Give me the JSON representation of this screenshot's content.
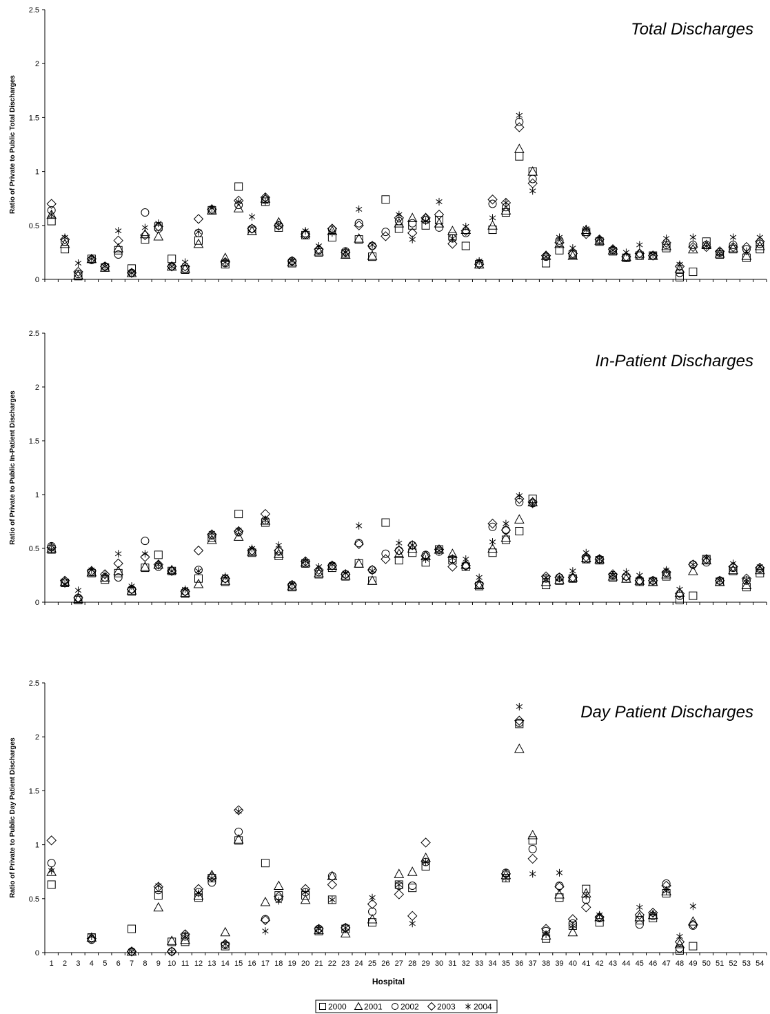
{
  "chart_data": [
    {
      "type": "scatter",
      "title": "Total Discharges",
      "ylabel": "Ratio of Private to Public Total Discharges",
      "ylim": [
        0,
        2.5
      ],
      "yticks": [
        "0",
        "0.5",
        "1",
        "1.5",
        "2",
        "2.5"
      ],
      "x": [
        1,
        2,
        3,
        4,
        5,
        6,
        7,
        8,
        9,
        10,
        11,
        12,
        13,
        14,
        15,
        16,
        17,
        18,
        19,
        20,
        21,
        22,
        23,
        24,
        25,
        26,
        27,
        28,
        29,
        30,
        31,
        32,
        33,
        34,
        35,
        36,
        37,
        38,
        39,
        40,
        41,
        42,
        43,
        44,
        45,
        46,
        47,
        48,
        49,
        50,
        51,
        52,
        53,
        54
      ],
      "series": [
        {
          "name": "2000",
          "values": [
            0.54,
            0.28,
            0.03,
            0.19,
            0.11,
            0.27,
            0.1,
            0.37,
            0.49,
            0.19,
            0.09,
            0.36,
            0.64,
            0.14,
            0.86,
            0.45,
            0.72,
            0.48,
            0.15,
            0.41,
            0.25,
            0.39,
            0.24,
            0.37,
            0.21,
            0.74,
            0.47,
            0.5,
            0.5,
            0.55,
            0.4,
            0.31,
            0.14,
            0.46,
            0.62,
            1.14,
            1.0,
            0.15,
            0.27,
            0.23,
            0.44,
            0.35,
            0.26,
            0.2,
            0.22,
            0.22,
            0.29,
            0.02,
            0.07,
            0.35,
            0.23,
            0.28,
            0.2,
            0.28
          ]
        },
        {
          "name": "2001",
          "values": [
            0.6,
            0.33,
            0.04,
            0.19,
            0.11,
            0.29,
            0.06,
            0.42,
            0.4,
            0.12,
            0.1,
            0.33,
            0.64,
            0.2,
            0.66,
            0.45,
            0.75,
            0.53,
            0.16,
            0.43,
            0.26,
            0.45,
            0.23,
            0.38,
            0.22,
            null,
            0.52,
            0.57,
            0.57,
            0.52,
            0.45,
            0.46,
            0.14,
            0.5,
            0.64,
            1.21,
            1.0,
            0.22,
            0.33,
            0.22,
            0.46,
            0.36,
            0.27,
            0.21,
            0.24,
            0.22,
            0.31,
            0.1,
            0.28,
            0.32,
            0.24,
            0.29,
            0.22,
            0.31
          ]
        },
        {
          "name": "2002",
          "values": [
            0.64,
            0.35,
            0.05,
            0.18,
            0.12,
            0.23,
            0.06,
            0.62,
            0.47,
            0.12,
            0.1,
            0.43,
            0.64,
            0.15,
            0.69,
            0.47,
            0.74,
            0.5,
            0.17,
            0.41,
            0.27,
            0.46,
            0.26,
            0.52,
            0.31,
            0.44,
            0.54,
            0.52,
            0.55,
            0.48,
            0.38,
            0.43,
            0.15,
            0.7,
            0.67,
            1.46,
            0.93,
            0.21,
            0.36,
            0.23,
            0.44,
            0.36,
            0.27,
            0.2,
            0.22,
            0.22,
            0.32,
            0.06,
            0.32,
            0.32,
            0.25,
            0.32,
            0.28,
            0.33
          ]
        },
        {
          "name": "2003",
          "values": [
            0.7,
            0.37,
            0.07,
            0.19,
            0.12,
            0.36,
            0.06,
            0.41,
            0.49,
            0.12,
            0.12,
            0.56,
            0.65,
            0.16,
            0.73,
            0.47,
            0.76,
            0.5,
            0.17,
            0.42,
            0.28,
            0.47,
            0.25,
            0.5,
            0.31,
            0.4,
            0.57,
            0.43,
            0.57,
            0.6,
            0.33,
            0.45,
            0.14,
            0.74,
            0.71,
            1.41,
            0.89,
            0.22,
            0.34,
            0.24,
            0.42,
            0.37,
            0.28,
            0.21,
            0.24,
            0.22,
            0.34,
            0.12,
            0.3,
            0.3,
            0.26,
            0.3,
            0.3,
            0.35
          ]
        },
        {
          "name": "2004",
          "values": [
            0.6,
            0.39,
            0.15,
            0.19,
            0.12,
            0.45,
            0.06,
            0.48,
            0.52,
            0.12,
            0.16,
            0.44,
            0.66,
            0.16,
            0.72,
            0.58,
            0.72,
            0.5,
            0.17,
            0.45,
            0.31,
            0.43,
            0.25,
            0.65,
            0.32,
            null,
            0.6,
            0.37,
            0.54,
            0.72,
            0.38,
            0.49,
            0.17,
            0.57,
            0.71,
            1.52,
            0.82,
            0.21,
            0.39,
            0.29,
            0.47,
            0.37,
            0.27,
            0.25,
            0.32,
            0.23,
            0.38,
            0.14,
            0.39,
            0.31,
            0.24,
            0.39,
            0.26,
            0.39
          ]
        }
      ]
    },
    {
      "type": "scatter",
      "title": "In-Patient Discharges",
      "ylabel": "Ratio of Private to Public In-Patient Discharges",
      "ylim": [
        0,
        2.5
      ],
      "yticks": [
        "0",
        "0.5",
        "1",
        "1.5",
        "2",
        "2.5"
      ],
      "x": [
        1,
        2,
        3,
        4,
        5,
        6,
        7,
        8,
        9,
        10,
        11,
        12,
        13,
        14,
        15,
        16,
        17,
        18,
        19,
        20,
        21,
        22,
        23,
        24,
        25,
        26,
        27,
        28,
        29,
        30,
        31,
        32,
        33,
        34,
        35,
        36,
        37,
        38,
        39,
        40,
        41,
        42,
        43,
        44,
        45,
        46,
        47,
        48,
        49,
        50,
        51,
        52,
        53,
        54
      ],
      "series": [
        {
          "name": "2000",
          "values": [
            0.49,
            0.18,
            0.02,
            0.27,
            0.21,
            0.27,
            0.1,
            0.32,
            0.44,
            0.29,
            0.08,
            0.22,
            0.6,
            0.19,
            0.82,
            0.46,
            0.74,
            0.43,
            0.14,
            0.36,
            0.26,
            0.32,
            0.24,
            0.36,
            0.2,
            0.74,
            0.39,
            0.46,
            0.37,
            0.49,
            0.39,
            0.33,
            0.15,
            0.46,
            0.58,
            0.66,
            0.96,
            0.16,
            0.2,
            0.22,
            0.4,
            0.39,
            0.23,
            0.22,
            0.19,
            0.19,
            0.24,
            0.02,
            0.06,
            0.4,
            0.19,
            0.29,
            0.14,
            0.27
          ]
        },
        {
          "name": "2001",
          "values": [
            0.5,
            0.19,
            0.03,
            0.28,
            0.23,
            0.29,
            0.11,
            0.33,
            0.35,
            0.3,
            0.09,
            0.17,
            0.58,
            0.2,
            0.61,
            0.47,
            0.76,
            0.45,
            0.15,
            0.37,
            0.27,
            0.34,
            0.25,
            0.36,
            0.2,
            null,
            0.45,
            0.5,
            0.43,
            0.49,
            0.45,
            0.35,
            0.16,
            0.5,
            0.6,
            0.77,
            0.93,
            0.19,
            0.21,
            0.23,
            0.41,
            0.4,
            0.24,
            0.22,
            0.2,
            0.19,
            0.26,
            0.09,
            0.29,
            0.39,
            0.19,
            0.3,
            0.16,
            0.3
          ]
        },
        {
          "name": "2002",
          "values": [
            0.52,
            0.18,
            0.04,
            0.28,
            0.23,
            0.23,
            0.12,
            0.57,
            0.33,
            0.29,
            0.1,
            0.3,
            0.62,
            0.22,
            0.65,
            0.47,
            0.76,
            0.47,
            0.16,
            0.36,
            0.28,
            0.34,
            0.26,
            0.55,
            0.3,
            0.45,
            0.48,
            0.53,
            0.44,
            0.47,
            0.4,
            0.34,
            0.16,
            0.7,
            0.67,
            0.93,
            0.92,
            0.22,
            0.23,
            0.22,
            0.4,
            0.4,
            0.25,
            0.24,
            0.2,
            0.2,
            0.27,
            0.06,
            0.35,
            0.37,
            0.2,
            0.32,
            0.2,
            0.31
          ]
        },
        {
          "name": "2003",
          "values": [
            0.51,
            0.2,
            0.04,
            0.29,
            0.26,
            0.36,
            0.12,
            0.42,
            0.35,
            0.29,
            0.1,
            0.48,
            0.63,
            0.22,
            0.66,
            0.48,
            0.82,
            0.48,
            0.16,
            0.38,
            0.3,
            0.34,
            0.26,
            0.54,
            0.3,
            0.4,
            0.48,
            0.53,
            0.43,
            0.49,
            0.33,
            0.34,
            0.17,
            0.73,
            0.67,
            0.96,
            0.93,
            0.24,
            0.23,
            0.23,
            0.42,
            0.4,
            0.26,
            0.24,
            0.2,
            0.2,
            0.28,
            0.08,
            0.35,
            0.4,
            0.2,
            0.33,
            0.22,
            0.32
          ]
        },
        {
          "name": "2004",
          "values": [
            0.49,
            0.17,
            0.11,
            0.3,
            0.26,
            0.45,
            0.15,
            0.45,
            0.35,
            0.29,
            0.12,
            0.29,
            0.64,
            0.24,
            0.67,
            0.5,
            0.76,
            0.53,
            0.17,
            0.38,
            0.33,
            0.35,
            0.27,
            0.71,
            0.29,
            null,
            0.55,
            0.53,
            0.4,
            0.48,
            0.41,
            0.4,
            0.23,
            0.56,
            0.73,
            0.99,
            0.91,
            0.23,
            0.22,
            0.29,
            0.46,
            0.4,
            0.25,
            0.28,
            0.25,
            0.2,
            0.3,
            0.12,
            0.35,
            0.41,
            0.2,
            0.36,
            0.21,
            0.33
          ]
        }
      ]
    },
    {
      "type": "scatter",
      "title": "Day Patient Discharges",
      "ylabel": "Ratio of Private to Public Day Patient Discharges",
      "xlabel": "Hospital",
      "ylim": [
        0,
        2.5
      ],
      "yticks": [
        "0",
        "0.5",
        "1",
        "1.5",
        "2",
        "2.5"
      ],
      "x": [
        1,
        2,
        3,
        4,
        5,
        6,
        7,
        8,
        9,
        10,
        11,
        12,
        13,
        14,
        15,
        16,
        17,
        18,
        19,
        20,
        21,
        22,
        23,
        24,
        25,
        26,
        27,
        28,
        29,
        30,
        31,
        32,
        33,
        34,
        35,
        36,
        37,
        38,
        39,
        40,
        41,
        42,
        43,
        44,
        45,
        46,
        47,
        48,
        49,
        50,
        51,
        52,
        53,
        54
      ],
      "series": [
        {
          "name": "2000",
          "values": [
            0.63,
            null,
            null,
            0.14,
            null,
            null,
            0.22,
            null,
            0.53,
            0.1,
            0.1,
            0.51,
            0.69,
            0.06,
            1.04,
            null,
            0.83,
            0.53,
            null,
            0.53,
            0.2,
            0.49,
            0.22,
            null,
            0.28,
            null,
            0.63,
            0.6,
            0.8,
            null,
            null,
            null,
            null,
            null,
            0.69,
            2.12,
            1.04,
            0.13,
            0.51,
            0.25,
            0.59,
            0.28,
            null,
            null,
            0.3,
            0.32,
            0.55,
            0.02,
            0.06,
            null,
            null,
            null,
            null,
            null
          ]
        },
        {
          "name": "2001",
          "values": [
            0.75,
            null,
            null,
            0.14,
            null,
            null,
            0.01,
            null,
            0.42,
            0.11,
            0.12,
            0.53,
            0.72,
            0.19,
            1.05,
            null,
            0.47,
            0.62,
            null,
            0.49,
            0.21,
            0.71,
            0.18,
            null,
            0.31,
            null,
            0.73,
            0.75,
            0.88,
            null,
            null,
            null,
            null,
            null,
            0.72,
            1.89,
            1.09,
            0.16,
            0.54,
            0.19,
            0.55,
            0.33,
            null,
            null,
            0.33,
            0.35,
            0.57,
            0.08,
            0.29,
            null,
            null,
            null,
            null,
            null
          ]
        },
        {
          "name": "2002",
          "values": [
            0.83,
            null,
            null,
            0.12,
            null,
            null,
            0.01,
            null,
            0.58,
            0.01,
            0.15,
            0.56,
            0.65,
            0.07,
            1.12,
            null,
            0.31,
            0.5,
            null,
            0.56,
            0.22,
            0.71,
            0.23,
            null,
            0.38,
            null,
            0.62,
            0.62,
            0.84,
            null,
            null,
            null,
            null,
            null,
            0.74,
            2.13,
            0.96,
            0.2,
            0.62,
            0.27,
            0.49,
            0.32,
            null,
            null,
            0.26,
            0.34,
            0.64,
            0.04,
            0.25,
            null,
            null,
            null,
            null,
            null
          ]
        },
        {
          "name": "2003",
          "values": [
            1.04,
            null,
            null,
            0.13,
            null,
            null,
            0.01,
            null,
            0.61,
            0.01,
            0.17,
            0.59,
            0.7,
            0.08,
            1.32,
            null,
            0.3,
            0.52,
            null,
            0.59,
            0.22,
            0.63,
            0.23,
            null,
            0.45,
            null,
            0.54,
            0.34,
            1.02,
            null,
            null,
            null,
            null,
            null,
            0.73,
            2.15,
            0.87,
            0.22,
            0.61,
            0.31,
            0.42,
            0.33,
            null,
            null,
            0.35,
            0.37,
            0.62,
            0.1,
            0.26,
            null,
            null,
            null,
            null,
            null
          ]
        },
        {
          "name": "2004",
          "values": [
            0.76,
            null,
            null,
            0.15,
            null,
            null,
            0.01,
            null,
            0.62,
            0.01,
            0.17,
            0.55,
            0.69,
            0.08,
            1.31,
            null,
            0.2,
            0.48,
            null,
            0.56,
            0.22,
            0.49,
            0.23,
            null,
            0.51,
            null,
            0.63,
            0.27,
            0.84,
            null,
            null,
            null,
            null,
            null,
            0.69,
            2.28,
            0.73,
            0.17,
            0.74,
            0.25,
            0.53,
            0.35,
            null,
            null,
            0.42,
            0.36,
            0.57,
            0.15,
            0.43,
            null,
            null,
            null,
            null,
            null
          ]
        }
      ]
    }
  ],
  "legend": {
    "entries": [
      {
        "label": "2000",
        "marker": "square"
      },
      {
        "label": "2001",
        "marker": "triangle"
      },
      {
        "label": "2002",
        "marker": "circle"
      },
      {
        "label": "2003",
        "marker": "diamond"
      },
      {
        "label": "2004",
        "marker": "asterisk"
      }
    ]
  },
  "colors": {
    "marker": "#000000",
    "axis": "#000000",
    "background": "#ffffff"
  }
}
